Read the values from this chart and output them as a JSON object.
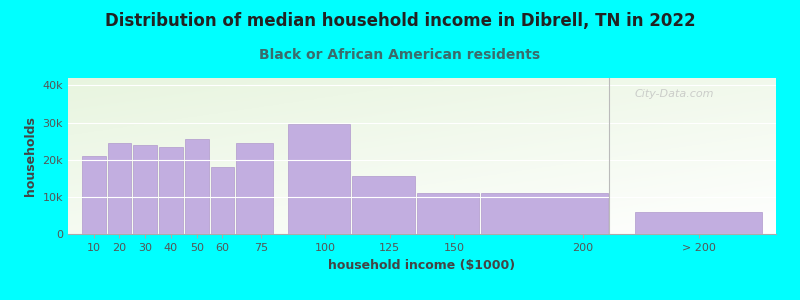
{
  "title": "Distribution of median household income in Dibrell, TN in 2022",
  "subtitle": "Black or African American residents",
  "xlabel": "household income ($1000)",
  "ylabel": "households",
  "background_outer": "#00FFFF",
  "bar_color": "#c2aee0",
  "bar_edge_color": "#b099cc",
  "values": [
    21000,
    24500,
    24000,
    23500,
    25500,
    18000,
    24500,
    29500,
    15500,
    11000,
    11000,
    6000
  ],
  "bar_widths": [
    10,
    10,
    10,
    10,
    10,
    10,
    15,
    25,
    25,
    25,
    50,
    50
  ],
  "bar_lefts": [
    5,
    15,
    25,
    35,
    45,
    55,
    65,
    85,
    110,
    135,
    160,
    220
  ],
  "ylim": [
    0,
    42000
  ],
  "yticks": [
    0,
    10000,
    20000,
    30000,
    40000
  ],
  "ytick_labels": [
    "0",
    "10k",
    "20k",
    "30k",
    "40k"
  ],
  "xtick_positions": [
    10,
    20,
    30,
    40,
    50,
    60,
    75,
    100,
    125,
    150,
    200,
    245
  ],
  "xtick_labels": [
    "10",
    "20",
    "30",
    "40",
    "50",
    "60",
    "75",
    "100",
    "125",
    "150",
    "200",
    "> 200"
  ],
  "xlim": [
    0,
    275
  ],
  "watermark": "City-Data.com",
  "title_fontsize": 12,
  "subtitle_fontsize": 10,
  "axis_label_fontsize": 9,
  "tick_fontsize": 8,
  "title_color": "#222222",
  "subtitle_color": "#3a6b6b",
  "axis_label_color": "#444444",
  "tick_color": "#555555"
}
